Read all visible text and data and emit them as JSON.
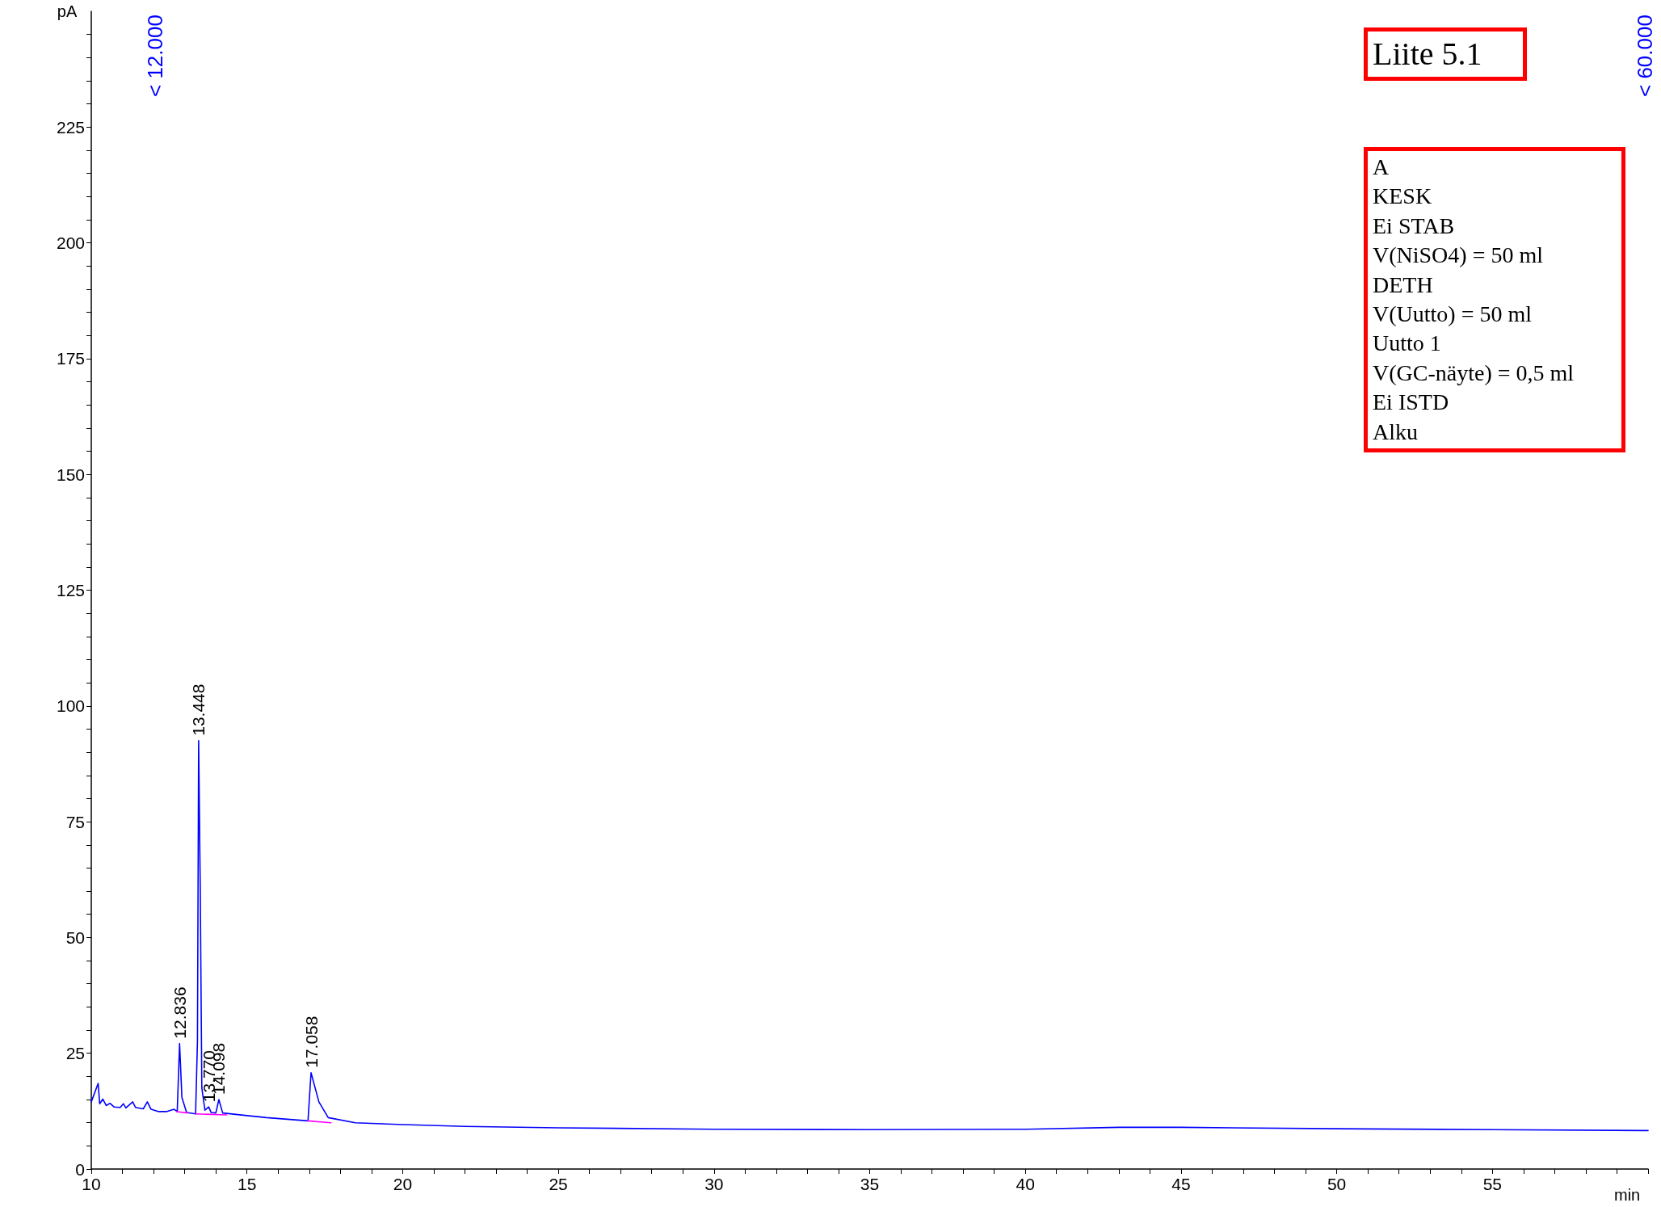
{
  "chart_data": {
    "type": "line",
    "xlabel": "min",
    "ylabel": "pA",
    "xlim": [
      10,
      60
    ],
    "ylim": [
      0,
      250
    ],
    "xticks": [
      10,
      {
        "value": 11,
        "label": null
      },
      {
        "value": 12,
        "label": null
      },
      {
        "value": 13,
        "label": null
      },
      {
        "value": 14,
        "label": null
      },
      15,
      {
        "value": 16,
        "label": null
      },
      {
        "value": 17,
        "label": null
      },
      {
        "value": 18,
        "label": null
      },
      {
        "value": 19,
        "label": null
      },
      20,
      {
        "value": 21,
        "label": null
      },
      {
        "value": 22,
        "label": null
      },
      {
        "value": 23,
        "label": null
      },
      {
        "value": 24,
        "label": null
      },
      25,
      {
        "value": 26,
        "label": null
      },
      {
        "value": 27,
        "label": null
      },
      {
        "value": 28,
        "label": null
      },
      {
        "value": 29,
        "label": null
      },
      30,
      {
        "value": 31,
        "label": null
      },
      {
        "value": 32,
        "label": null
      },
      {
        "value": 33,
        "label": null
      },
      {
        "value": 34,
        "label": null
      },
      35,
      {
        "value": 36,
        "label": null
      },
      {
        "value": 37,
        "label": null
      },
      {
        "value": 38,
        "label": null
      },
      {
        "value": 39,
        "label": null
      },
      40,
      {
        "value": 41,
        "label": null
      },
      {
        "value": 42,
        "label": null
      },
      {
        "value": 43,
        "label": null
      },
      {
        "value": 44,
        "label": null
      },
      45,
      {
        "value": 46,
        "label": null
      },
      {
        "value": 47,
        "label": null
      },
      {
        "value": 48,
        "label": null
      },
      {
        "value": 49,
        "label": null
      },
      50,
      {
        "value": 51,
        "label": null
      },
      {
        "value": 52,
        "label": null
      },
      {
        "value": 53,
        "label": null
      },
      {
        "value": 54,
        "label": null
      },
      55,
      {
        "value": 56,
        "label": null
      },
      {
        "value": 57,
        "label": null
      },
      {
        "value": 58,
        "label": null
      },
      {
        "value": 59,
        "label": null
      },
      {
        "value": 60,
        "label": null
      }
    ],
    "yticks": [
      0,
      {
        "value": 5,
        "label": null
      },
      {
        "value": 10,
        "label": null
      },
      {
        "value": 15,
        "label": null
      },
      {
        "value": 20,
        "label": null
      },
      25,
      {
        "value": 30,
        "label": null
      },
      {
        "value": 35,
        "label": null
      },
      {
        "value": 40,
        "label": null
      },
      {
        "value": 45,
        "label": null
      },
      50,
      {
        "value": 55,
        "label": null
      },
      {
        "value": 60,
        "label": null
      },
      {
        "value": 65,
        "label": null
      },
      {
        "value": 70,
        "label": null
      },
      75,
      {
        "value": 80,
        "label": null
      },
      {
        "value": 85,
        "label": null
      },
      {
        "value": 90,
        "label": null
      },
      {
        "value": 95,
        "label": null
      },
      100,
      {
        "value": 105,
        "label": null
      },
      {
        "value": 110,
        "label": null
      },
      {
        "value": 115,
        "label": null
      },
      {
        "value": 120,
        "label": null
      },
      125,
      {
        "value": 130,
        "label": null
      },
      {
        "value": 135,
        "label": null
      },
      {
        "value": 140,
        "label": null
      },
      {
        "value": 145,
        "label": null
      },
      150,
      {
        "value": 155,
        "label": null
      },
      {
        "value": 160,
        "label": null
      },
      {
        "value": 165,
        "label": null
      },
      {
        "value": 170,
        "label": null
      },
      175,
      {
        "value": 180,
        "label": null
      },
      {
        "value": 185,
        "label": null
      },
      {
        "value": 190,
        "label": null
      },
      {
        "value": 195,
        "label": null
      },
      200,
      {
        "value": 205,
        "label": null
      },
      {
        "value": 210,
        "label": null
      },
      {
        "value": 215,
        "label": null
      },
      {
        "value": 220,
        "label": null
      },
      225,
      {
        "value": 230,
        "label": null
      },
      {
        "value": 235,
        "label": null
      },
      {
        "value": 240,
        "label": null
      },
      {
        "value": 245,
        "label": null
      }
    ],
    "grid": false,
    "marker": "none",
    "line_style": "solid",
    "series": [
      {
        "color": "#0000ff",
        "x": [
          10.0,
          10.22,
          10.27,
          10.37,
          10.48,
          10.6,
          10.73,
          10.93,
          11.03,
          11.11,
          11.33,
          11.42,
          11.67,
          11.8,
          11.92,
          12.17,
          12.41,
          12.66,
          12.76,
          12.836,
          12.91,
          13.06,
          13.35,
          13.41,
          13.448,
          13.5,
          13.55,
          13.65,
          13.77,
          13.85,
          14.0,
          14.098,
          14.22,
          14.64,
          15.63,
          16.96,
          17.058,
          17.31,
          17.61,
          18.48,
          20,
          22,
          25,
          30,
          35,
          40,
          43,
          45,
          50,
          55,
          60
        ],
        "values": [
          14.5,
          18.5,
          14.1,
          15.1,
          13.7,
          14.2,
          13.4,
          13.3,
          14.1,
          13.2,
          14.5,
          13.3,
          13.0,
          14.5,
          12.9,
          12.4,
          12.4,
          12.9,
          12.4,
          27.1,
          15.5,
          12.2,
          11.9,
          27.6,
          92.5,
          60.3,
          17.5,
          12.7,
          13.4,
          12.2,
          12.1,
          15.0,
          12.1,
          11.8,
          11.1,
          10.4,
          20.8,
          14.5,
          11.1,
          10.0,
          9.6,
          9.2,
          8.9,
          8.6,
          8.5,
          8.6,
          9.0,
          9.0,
          8.7,
          8.5,
          8.3
        ]
      },
      {
        "color": "#ff00ff",
        "x": [
          12.74,
          13.1,
          13.2,
          13.35,
          14.35,
          14.5,
          16.95,
          17.7
        ],
        "values": [
          12.4,
          12.1,
          null,
          11.9,
          11.7,
          null,
          10.4,
          10.0
        ]
      }
    ],
    "annotations": [
      {
        "text": "12.836",
        "x": 12.836,
        "y": 27.1
      },
      {
        "text": "13.448",
        "x": 13.448,
        "y": 92.5
      },
      {
        "text": "13.770",
        "x": 13.77,
        "y": 13.4
      },
      {
        "text": "14.098",
        "x": 14.098,
        "y": 15.0
      },
      {
        "text": "17.058",
        "x": 17.058,
        "y": 20.8
      },
      "< 12.000",
      "< 60.000",
      "Liite 5.1",
      "A\nKESK\nEi STAB\nV(NiSO4) = 50 ml\nDETH\nV(Uutto) = 50 ml\nUutto 1\nV(GC-näyte) = 0,5 ml\nEi ISTD\nAlku"
    ]
  }
}
